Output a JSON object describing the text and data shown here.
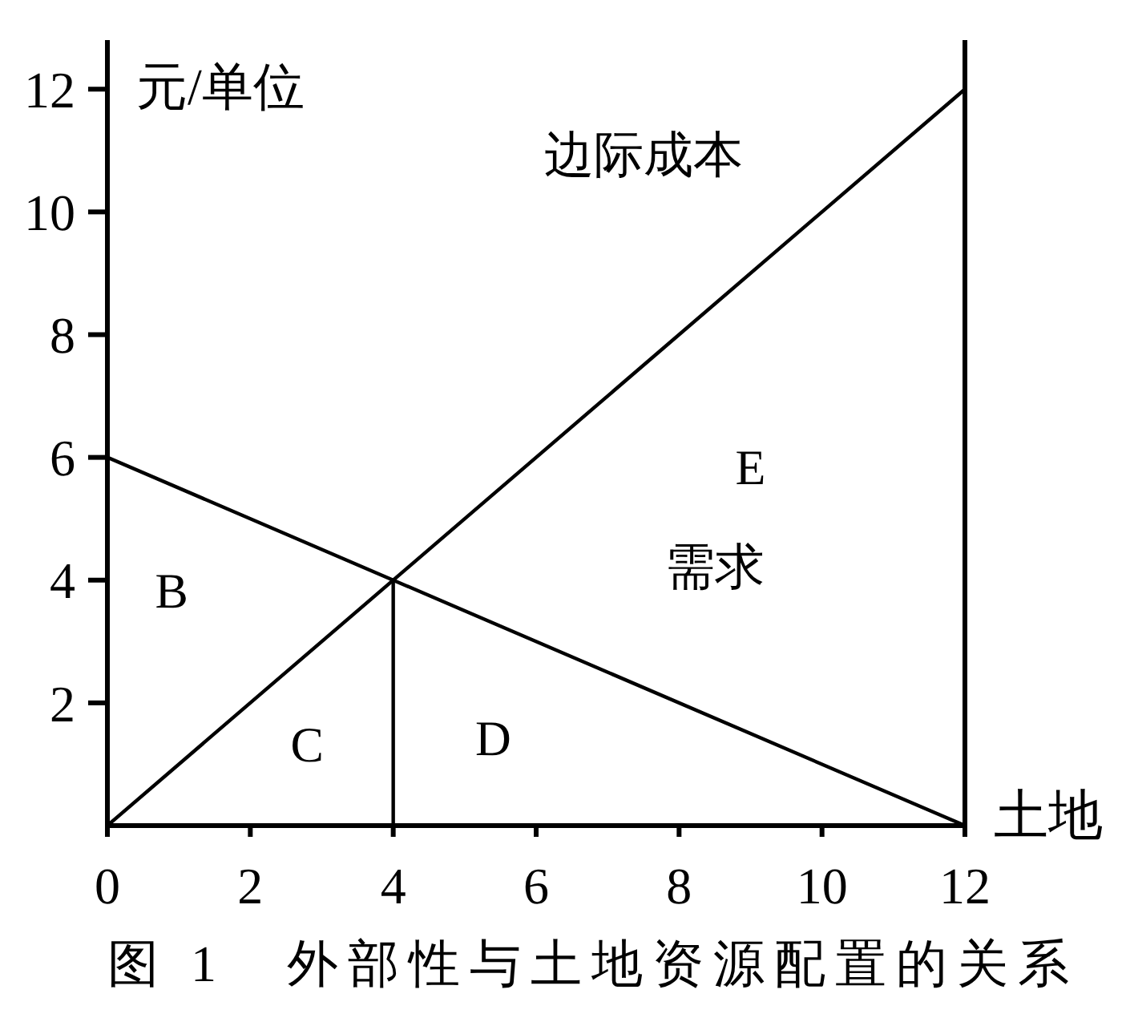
{
  "chart_data": {
    "type": "line",
    "title": "图 1　外部性与土地资源配置的关系",
    "xlabel": "土地",
    "ylabel": "元/单位",
    "xlim": [
      0,
      12
    ],
    "ylim": [
      0,
      12.8
    ],
    "xticks": [
      0,
      2,
      4,
      6,
      8,
      10,
      12
    ],
    "yticks": [
      2,
      4,
      6,
      8,
      10,
      12
    ],
    "series": [
      {
        "color": "#000000",
        "x": [
          0,
          12
        ],
        "values": [
          0,
          12
        ]
      },
      {
        "color": "#000000",
        "x": [
          0,
          12
        ],
        "values": [
          6,
          0
        ]
      },
      {
        "color": "#000000",
        "x": [
          4,
          4
        ],
        "values": [
          0,
          4
        ]
      }
    ],
    "ref_lines": [
      {
        "axis": "x",
        "value": 12,
        "color": "#000000"
      }
    ],
    "annotations": [
      "边际成本",
      "E",
      "需求",
      "B",
      "C",
      "D"
    ],
    "marker": "none",
    "line_style": "solid"
  }
}
